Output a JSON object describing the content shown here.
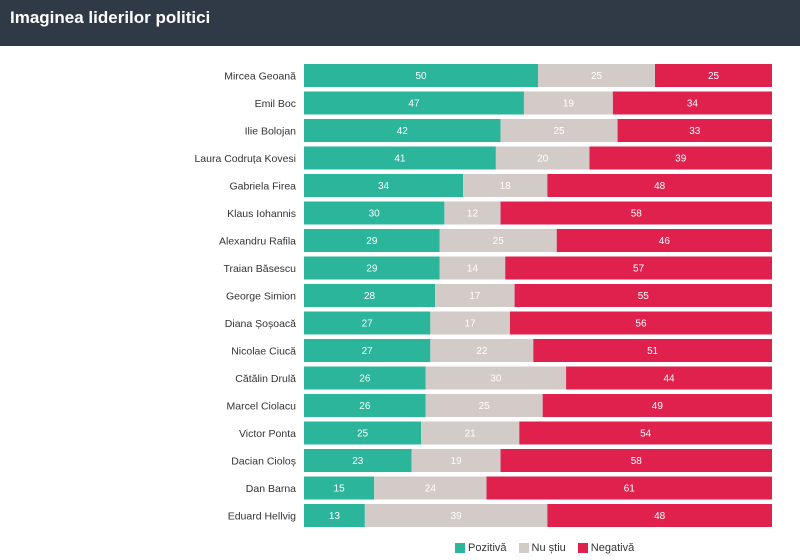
{
  "header": {
    "title": "Imaginea liderilor politici"
  },
  "colors": {
    "header_bg": "#303a46",
    "pozitiva": "#2bb59a",
    "nu_stiu": "#d3cbc7",
    "negativa": "#e0214e"
  },
  "chart_data": {
    "type": "bar",
    "orientation": "horizontal",
    "stacked": true,
    "title": "Imaginea liderilor politici",
    "xlim": [
      0,
      100
    ],
    "legend_position": "bottom-right",
    "categories": [
      "Mircea Geoană",
      "Emil Boc",
      "Ilie Bolojan",
      "Laura Codruța Kovesi",
      "Gabriela Firea",
      "Klaus Iohannis",
      "Alexandru Rafila",
      "Traian Băsescu",
      "George Simion",
      "Diana Șoșoacă",
      "Nicolae Ciucă",
      "Cătălin Drulă",
      "Marcel Ciolacu",
      "Victor Ponta",
      "Dacian Cioloș",
      "Dan Barna",
      "Eduard Hellvig"
    ],
    "series": [
      {
        "name": "Pozitivă",
        "color": "#2bb59a",
        "values": [
          50,
          47,
          42,
          41,
          34,
          30,
          29,
          29,
          28,
          27,
          27,
          26,
          26,
          25,
          23,
          15,
          13
        ]
      },
      {
        "name": "Nu știu",
        "color": "#d3cbc7",
        "values": [
          25,
          19,
          25,
          20,
          18,
          12,
          25,
          14,
          17,
          17,
          22,
          30,
          25,
          21,
          19,
          24,
          39
        ]
      },
      {
        "name": "Negativă",
        "color": "#e0214e",
        "values": [
          25,
          34,
          33,
          39,
          48,
          58,
          46,
          57,
          55,
          56,
          51,
          44,
          49,
          54,
          58,
          61,
          48
        ]
      }
    ]
  }
}
